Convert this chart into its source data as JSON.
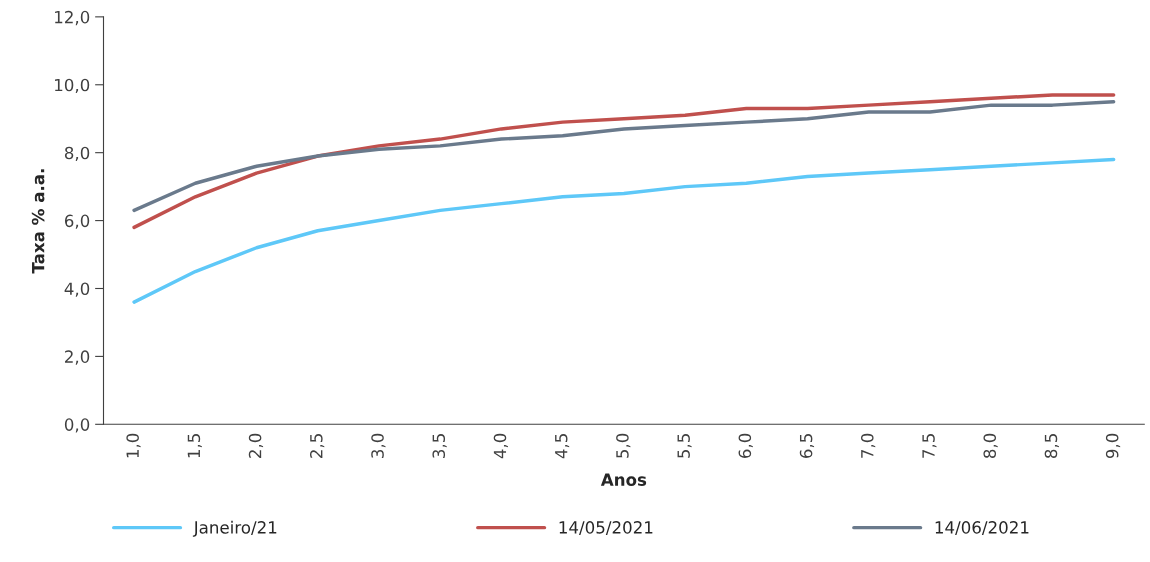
{
  "chart_data": {
    "type": "line",
    "xlabel": "Anos",
    "ylabel": "Taxa % a.a.",
    "categories": [
      "1,0",
      "1,5",
      "2,0",
      "2,5",
      "3,0",
      "3,5",
      "4,0",
      "4,5",
      "5,0",
      "5,5",
      "6,0",
      "6,5",
      "7,0",
      "7,5",
      "8,0",
      "8,5",
      "9,0"
    ],
    "series": [
      {
        "name": "Janeiro/21",
        "color": "#5ec8f8",
        "values": [
          3.6,
          4.5,
          5.2,
          5.7,
          6.0,
          6.3,
          6.5,
          6.7,
          6.8,
          7.0,
          7.1,
          7.3,
          7.4,
          7.5,
          7.6,
          7.7,
          7.8
        ]
      },
      {
        "name": "14/05/2021",
        "color": "#c0504d",
        "values": [
          5.8,
          6.7,
          7.4,
          7.9,
          8.2,
          8.4,
          8.7,
          8.9,
          9.0,
          9.1,
          9.3,
          9.3,
          9.4,
          9.5,
          9.6,
          9.7,
          9.7
        ]
      },
      {
        "name": "14/06/2021",
        "color": "#6a7a8c",
        "values": [
          6.3,
          7.1,
          7.6,
          7.9,
          8.1,
          8.2,
          8.4,
          8.5,
          8.7,
          8.8,
          8.9,
          9.0,
          9.2,
          9.2,
          9.4,
          9.4,
          9.5
        ]
      }
    ],
    "ylim": [
      0,
      12
    ],
    "yticks": [
      {
        "value": 0,
        "label": "0,0"
      },
      {
        "value": 2,
        "label": "2,0"
      },
      {
        "value": 4,
        "label": "4,0"
      },
      {
        "value": 6,
        "label": "6,0"
      },
      {
        "value": 8,
        "label": "8,0"
      },
      {
        "value": 10,
        "label": "10,0"
      },
      {
        "value": 12,
        "label": "12,0"
      }
    ],
    "grid": false,
    "legend": "bottom",
    "marker": "none",
    "line_style": "solid"
  }
}
